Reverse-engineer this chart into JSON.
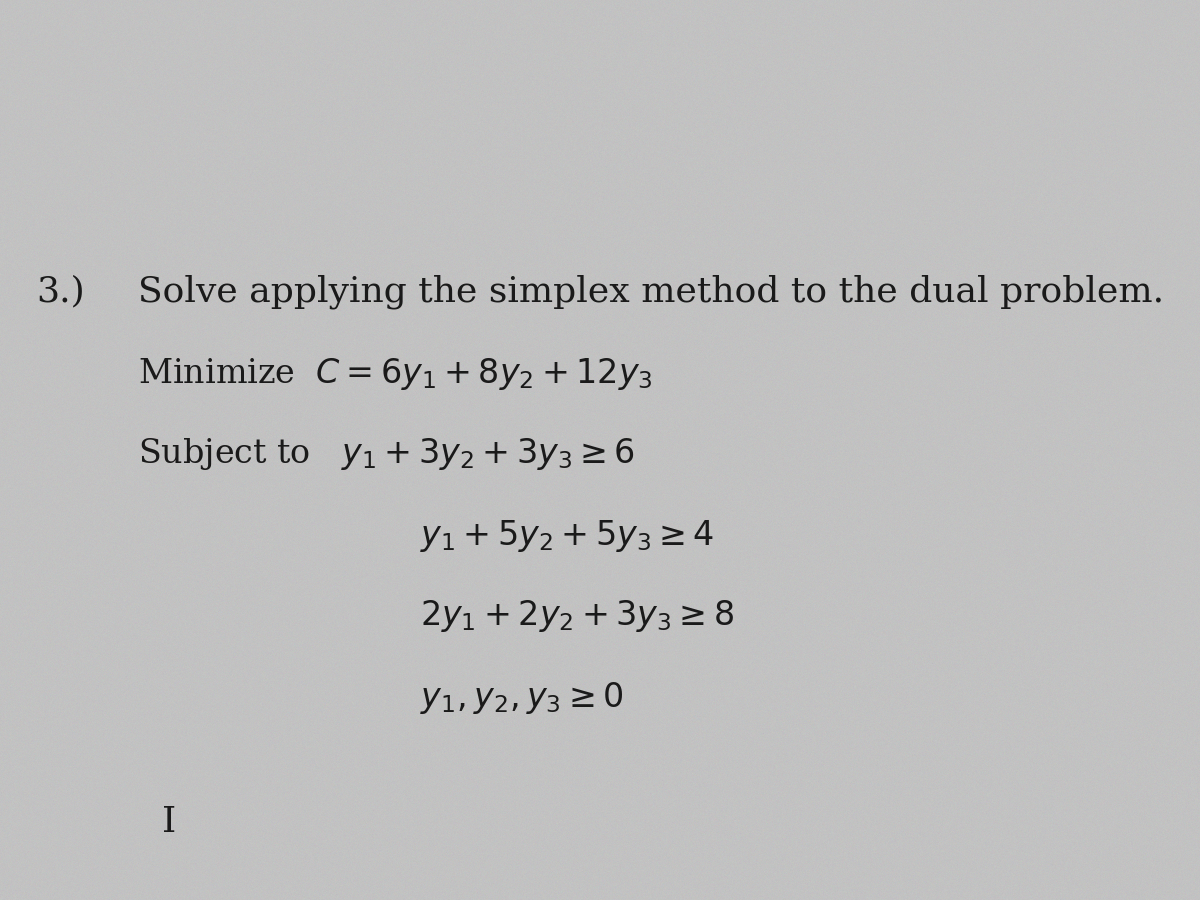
{
  "background_color": "#c2c2c2",
  "text_color": "#1a1a1a",
  "title_number": "3.)",
  "title_text": "Solve applying the simplex method to the dual problem.",
  "line_minimize": "Minimize  $C = 6y_1 + 8y_2 + 12y_3$",
  "line_subject": "Subject to   $y_1 + 3y_2 + 3y_3 \\geq 6$",
  "line_c2": "$y_1 + 5y_2 + 5y_3 \\geq 4$",
  "line_c3": "$2y_1 + 2y_2 + 3y_3 \\geq 8$",
  "line_c4": "$y_1, y_2, y_3 \\geq 0$",
  "footer": "I",
  "fs_header": 26,
  "fs_body": 24,
  "fs_footer": 26,
  "noise_seed": 42,
  "noise_alpha": 0.18
}
